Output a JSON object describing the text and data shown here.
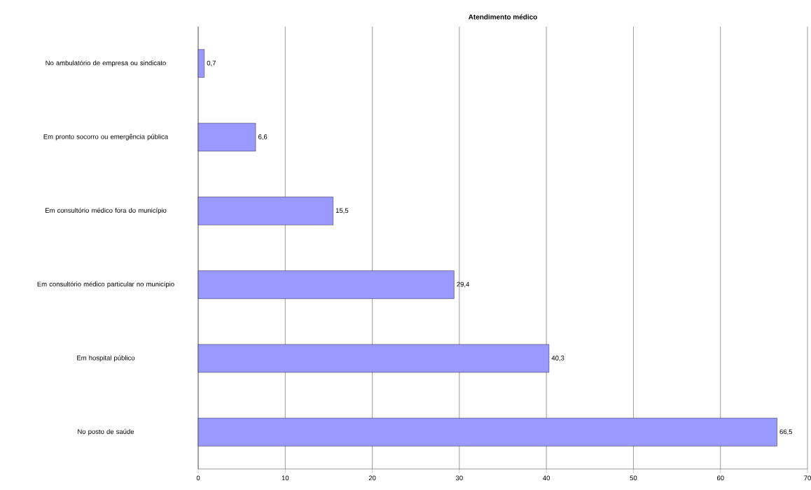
{
  "chart_data": {
    "type": "bar",
    "orientation": "horizontal",
    "title": "Atendimento médico",
    "categories": [
      "No ambulatório de empresa ou sindicato",
      "Em pronto socorro ou emergência pública",
      "Em consultório médico fora do município",
      "Em consultório médico particular no município",
      "Em hospital público",
      "No posto de saúde"
    ],
    "values": [
      0.7,
      6.6,
      15.5,
      29.4,
      40.3,
      66.5
    ],
    "value_labels": [
      "0,7",
      "6,6",
      "15,5",
      "29,4",
      "40,3",
      "66,5"
    ],
    "color": "#9999ff",
    "xlim": [
      0,
      70
    ],
    "xticks": [
      0,
      10,
      20,
      30,
      40,
      50,
      60,
      70
    ],
    "grid": "x"
  }
}
